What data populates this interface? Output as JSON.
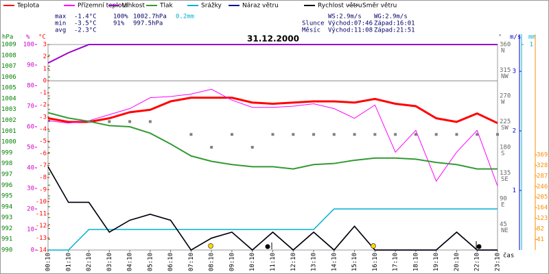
{
  "chart_data": {
    "type": "line",
    "title": "31.12.2000",
    "categories": [
      "00:10",
      "01:10",
      "02:10",
      "03:10",
      "04:10",
      "05:10",
      "06:10",
      "07:10",
      "08:10",
      "09:10",
      "10:10",
      "11:10",
      "12:10",
      "13:10",
      "14:10",
      "15:10",
      "16:10",
      "17:10",
      "18:10",
      "19:10",
      "20:10",
      "22:10",
      "23:10"
    ],
    "x_label": "čas",
    "axes": {
      "hpa": {
        "label": "hPa",
        "color": "#008000",
        "ylim": [
          990,
          1009
        ],
        "yticks": [
          990,
          991,
          992,
          993,
          994,
          995,
          996,
          997,
          998,
          999,
          1000,
          1001,
          1002,
          1003,
          1004,
          1005,
          1006,
          1007,
          1008,
          1009
        ]
      },
      "pct": {
        "label": "%",
        "color": "#cc00cc",
        "ylim": [
          0,
          100
        ],
        "yticks": [
          0,
          10,
          20,
          30,
          40,
          50,
          60,
          70,
          80,
          90,
          100
        ]
      },
      "temp": {
        "label": "°C",
        "color": "#ff0000",
        "ylim": [
          -14,
          3
        ],
        "yticks": [
          -14,
          -13,
          -12,
          -11,
          -10,
          -9,
          -8,
          -7,
          -6,
          -5,
          -4,
          -3,
          -2,
          -1,
          0,
          1,
          2,
          3
        ]
      },
      "dir": {
        "label": "°",
        "color": "#666666",
        "ylim": [
          0,
          360
        ],
        "yticks": [
          45,
          90,
          135,
          180,
          225,
          270,
          315,
          360
        ],
        "compass": [
          "NE",
          "E",
          "SE",
          "S",
          "SW",
          "W",
          "NW",
          "N"
        ]
      },
      "ms": {
        "label": "m/s",
        "color": "#0000cc",
        "ylim": [
          0,
          3.45
        ],
        "yticks": [
          1,
          2,
          3
        ]
      },
      "mm": {
        "label": "mm",
        "color": "#00b0d0",
        "ylim": [
          0,
          1
        ],
        "yticks": [
          1
        ]
      },
      "aux": {
        "color": "#ff8c00",
        "ylim": [
          0,
          796
        ],
        "yticks": [
          41,
          82,
          123,
          164,
          205,
          246,
          287,
          328,
          369
        ]
      }
    },
    "series": [
      {
        "name": "Teplota",
        "color": "#ff0000",
        "axis": "temp",
        "width": 3,
        "values": [
          -3.1,
          -3.4,
          -3.4,
          -3.1,
          -2.6,
          -2.4,
          -1.7,
          -1.4,
          -1.4,
          -1.4,
          -1.8,
          -1.9,
          -1.8,
          -1.7,
          -1.7,
          -1.8,
          -1.5,
          -1.9,
          -2.1,
          -3.1,
          -3.4,
          -2.7,
          -3.5
        ]
      },
      {
        "name": "Přízemní teplota",
        "color": "#ff00ff",
        "axis": "temp",
        "width": 1,
        "values": [
          -3.3,
          -3.5,
          -3.3,
          -2.8,
          -2.3,
          -1.4,
          -1.3,
          -1.1,
          -0.7,
          -1.6,
          -2.2,
          -2.2,
          -2.1,
          -1.9,
          -2.3,
          -3.1,
          -2.0,
          -5.9,
          -4.1,
          -8.3,
          -5.9,
          -4.1,
          -8.7
        ]
      },
      {
        "name": "Vlhkost",
        "color": "#9900cc",
        "axis": "pct",
        "width": 2,
        "values": [
          91,
          96,
          100,
          100,
          100,
          100,
          100,
          100,
          100,
          100,
          100,
          100,
          100,
          100,
          100,
          100,
          100,
          100,
          100,
          100,
          100,
          100,
          100
        ]
      },
      {
        "name": "Tlak",
        "color": "#339933",
        "axis": "hpa",
        "width": 2,
        "values": [
          1002.7,
          1002.2,
          1001.9,
          1001.5,
          1001.4,
          1000.8,
          999.8,
          998.7,
          998.2,
          997.9,
          997.7,
          997.7,
          997.5,
          997.9,
          998.0,
          998.3,
          998.5,
          998.5,
          998.4,
          998.1,
          997.9,
          997.5,
          997.5
        ]
      },
      {
        "name": "Srážky",
        "color": "#00b0d0",
        "axis": "mm",
        "width": 1.5,
        "values": [
          0,
          0,
          0.1,
          0.1,
          0.1,
          0.1,
          0.1,
          0.1,
          0.1,
          0.1,
          0.1,
          0.1,
          0.1,
          0.1,
          0.2,
          0.2,
          0.2,
          0.2,
          0.2,
          0.2,
          0.2,
          0.2,
          0.2
        ]
      },
      {
        "name": "Náraz větru",
        "color": "#000099",
        "axis": "ms",
        "width": 1.5,
        "values": [
          1.4,
          0.8,
          0.8,
          0.3,
          0.5,
          0.6,
          0.5,
          0,
          0.2,
          0.3,
          0,
          0.3,
          0,
          0.3,
          0,
          0.4,
          0,
          0,
          0,
          0,
          0.3,
          0,
          0
        ]
      },
      {
        "name": "Rychlost větru",
        "color": "#000000",
        "axis": "ms",
        "width": 1.5,
        "values": [
          1.4,
          0.8,
          0.8,
          0.3,
          0.5,
          0.6,
          0.5,
          0,
          0.2,
          0.3,
          0,
          0.3,
          0,
          0.3,
          0,
          0.4,
          0,
          0,
          0,
          0,
          0.3,
          0,
          0
        ]
      },
      {
        "name": "Směr větru",
        "color": "#808080",
        "axis": "dir",
        "style": "points",
        "values": [
          null,
          null,
          225,
          225,
          225,
          225,
          null,
          202.5,
          180,
          202.5,
          180,
          202.5,
          202.5,
          202.5,
          202.5,
          202.5,
          202.5,
          202.5,
          202.5,
          202.5,
          202.5,
          202.5,
          202.5
        ]
      }
    ],
    "stats": [
      {
        "label": "max",
        "temp": "-1.4°C",
        "hum": "100%",
        "press": "1002.7hPa",
        "precip": "0.2mm"
      },
      {
        "label": "min",
        "temp": "-3.5°C",
        "hum": "91%",
        "press": "997.5hPa"
      },
      {
        "label": "avg",
        "temp": "-2.3°C"
      }
    ],
    "wind_info": [
      "WS:2.9m/s",
      "WG:2.9m/s"
    ],
    "sun": {
      "label": "Slunce",
      "rise": "Východ:07:46",
      "set": "Západ:16:01"
    },
    "moon": {
      "label": "Měsíc",
      "rise": "Východ:11:08",
      "set": "Západ:21:51"
    }
  }
}
